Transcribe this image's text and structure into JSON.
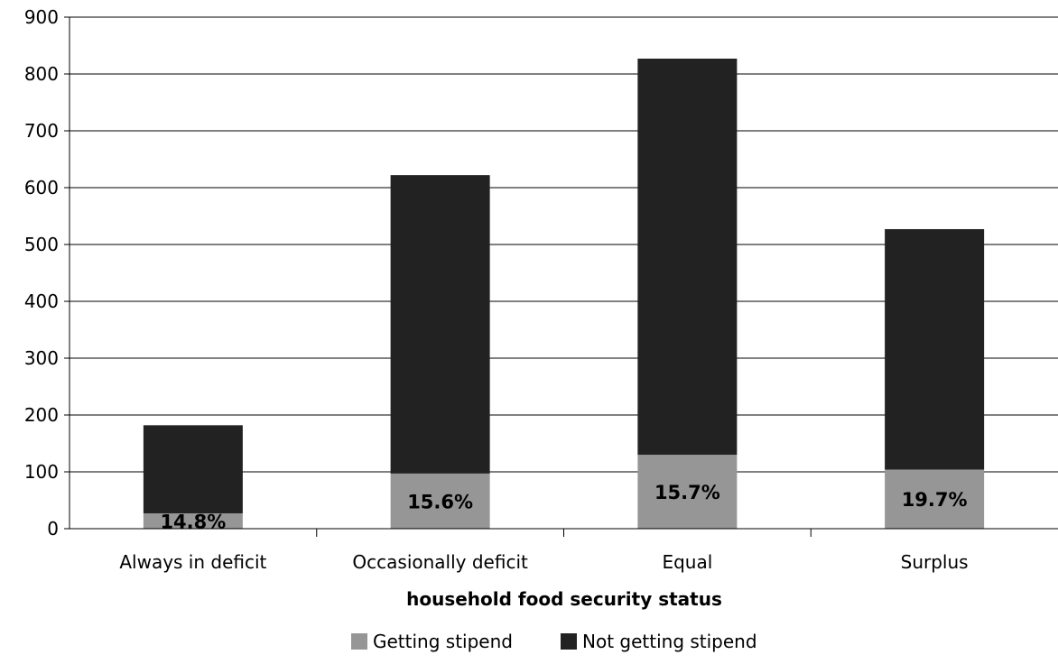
{
  "chart_data": {
    "type": "bar",
    "stacked": true,
    "title": "",
    "xlabel": "household food security status",
    "ylabel": "",
    "ylim": [
      0,
      900
    ],
    "yticks": [
      0,
      100,
      200,
      300,
      400,
      500,
      600,
      700,
      800,
      900
    ],
    "grid": true,
    "legend_position": "bottom",
    "categories": [
      "Always in deficit",
      "Occasionally deficit",
      "Equal",
      "Surplus"
    ],
    "series": [
      {
        "name": "Getting stipend",
        "color": "#969696",
        "values": [
          27,
          97,
          130,
          104
        ]
      },
      {
        "name": "Not getting stipend",
        "color": "#222222",
        "values": [
          155,
          525,
          697,
          423
        ]
      }
    ],
    "data_labels": [
      "14.8%",
      "15.6%",
      "15.7%",
      "19.7%"
    ]
  }
}
